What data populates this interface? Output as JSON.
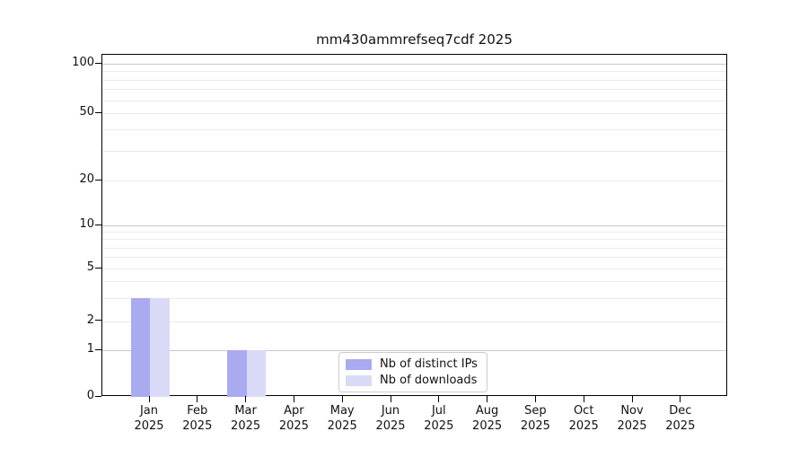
{
  "chart_data": {
    "type": "bar",
    "title": "mm430ammrefseq7cdf 2025",
    "year": "2025",
    "categories": [
      "Jan",
      "Feb",
      "Mar",
      "Apr",
      "May",
      "Jun",
      "Jul",
      "Aug",
      "Sep",
      "Oct",
      "Nov",
      "Dec"
    ],
    "series": [
      {
        "name": "Nb of distinct IPs",
        "color": "#aaaaf0",
        "values": [
          3,
          0,
          1,
          0,
          0,
          0,
          0,
          0,
          0,
          0,
          0,
          0
        ]
      },
      {
        "name": "Nb of downloads",
        "color": "#d9d9f8",
        "values": [
          3,
          0,
          1,
          0,
          0,
          0,
          0,
          0,
          0,
          0,
          0,
          0
        ]
      }
    ],
    "y_axis": {
      "scale": "log-like with 0 baseline",
      "tick_labels": [
        100,
        50,
        20,
        10,
        5,
        2,
        1,
        0
      ],
      "major_gridlines": [
        1,
        10,
        100
      ],
      "minor_gridlines": [
        2,
        3,
        4,
        5,
        6,
        7,
        8,
        9,
        20,
        30,
        40,
        50,
        60,
        70,
        80,
        90
      ],
      "range": [
        0,
        115
      ]
    },
    "legend": {
      "position": "inside bottom-center"
    },
    "grid": true,
    "colors": {
      "bar_distinct_ips": "#aaaaf0",
      "bar_downloads": "#d9d9f8",
      "major_grid": "#c9c9c9",
      "minor_grid": "#ebebeb",
      "axis": "#000000",
      "legend_border": "#cccccc"
    }
  }
}
